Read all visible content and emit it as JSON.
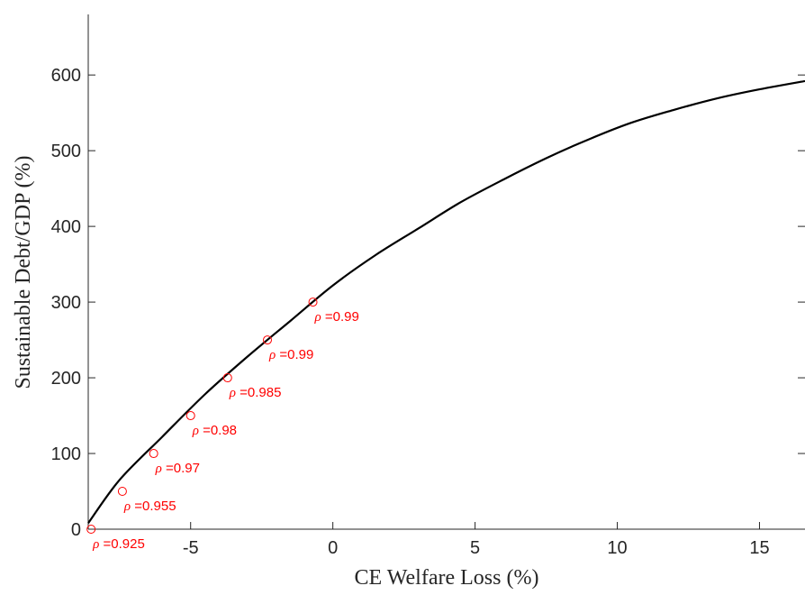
{
  "chart_data": {
    "type": "line",
    "xlabel": "CE Welfare Loss (%)",
    "ylabel": "Sustainable Debt/GDP (%)",
    "xlim": [
      -8.6,
      16.6
    ],
    "ylim": [
      0,
      680
    ],
    "xticks": [
      -5,
      0,
      5,
      10,
      15
    ],
    "xtick_labels": [
      "-5",
      "0",
      "5",
      "10",
      "15"
    ],
    "yticks": [
      0,
      100,
      200,
      300,
      400,
      500,
      600
    ],
    "ytick_labels": [
      "0",
      "100",
      "200",
      "300",
      "400",
      "500",
      "600"
    ],
    "grid": false,
    "series": [
      {
        "kind": "line",
        "color": "#000000",
        "x": [
          -8.6,
          -7.5,
          -6.0,
          -4.5,
          -3.0,
          -1.5,
          0.0,
          1.5,
          3.0,
          4.5,
          6.0,
          7.5,
          9.0,
          10.5,
          12.0,
          13.5,
          15.0,
          16.6
        ],
        "y": [
          8,
          65,
          122,
          178,
          228,
          275,
          322,
          362,
          397,
          432,
          462,
          490,
          515,
          537,
          554,
          569,
          581,
          592
        ]
      },
      {
        "kind": "scatter",
        "marker": "circle-open",
        "color": "#ff0000",
        "x": [
          -8.5,
          -7.4,
          -6.3,
          -5.0,
          -3.7,
          -2.3,
          -0.7
        ],
        "y": [
          0,
          50,
          100,
          150,
          200,
          250,
          300
        ],
        "labels": [
          {
            "symbol": "ρ",
            "text": " =0.925"
          },
          {
            "symbol": "ρ",
            "text": " =0.955"
          },
          {
            "symbol": "ρ",
            "text": " =0.97"
          },
          {
            "symbol": "ρ",
            "text": " =0.98"
          },
          {
            "symbol": "ρ",
            "text": " =0.985"
          },
          {
            "symbol": "ρ",
            "text": " =0.99"
          },
          {
            "symbol": "ρ",
            "text": " =0.99"
          }
        ]
      }
    ]
  }
}
